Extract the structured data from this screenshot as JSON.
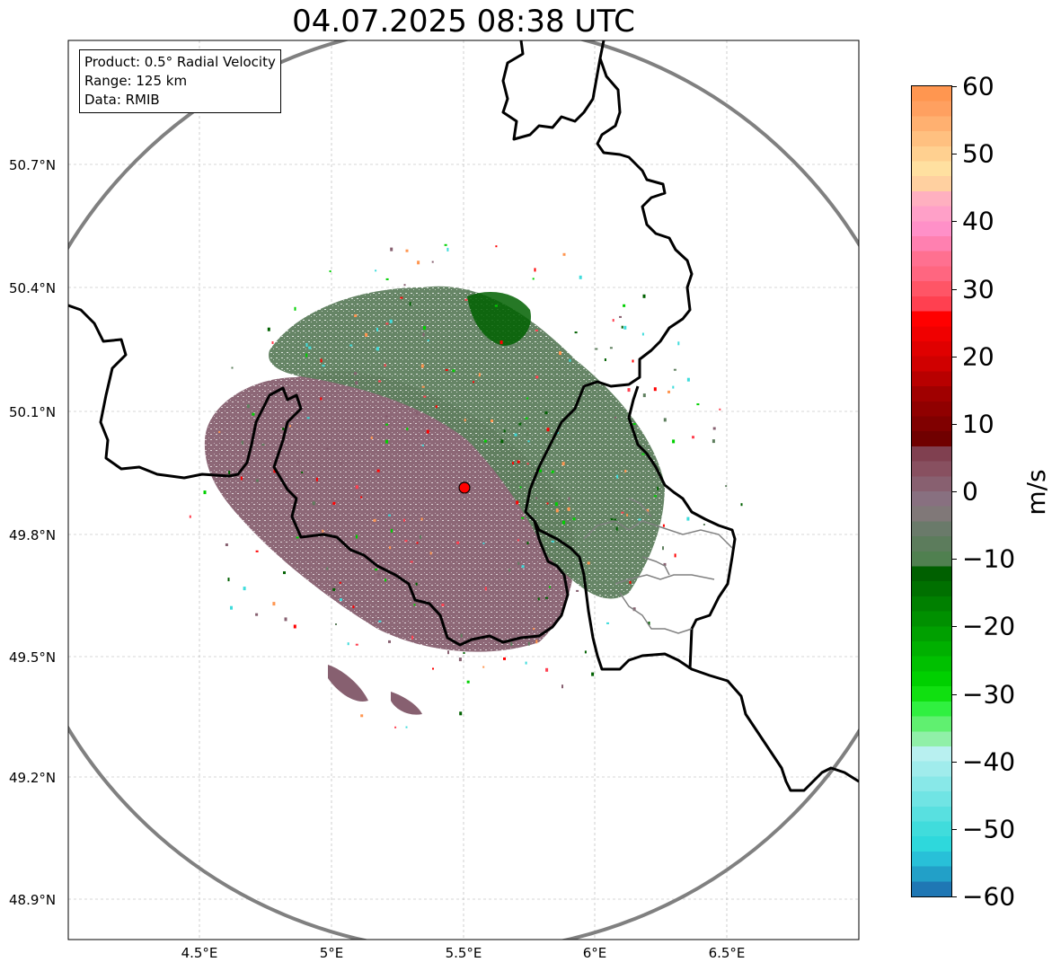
{
  "title": "04.07.2025 08:38 UTC",
  "info": {
    "product": "Product: 0.5° Radial Velocity",
    "range": "Range: 125 km",
    "data": "Data: RMIB"
  },
  "axes": {
    "lat_labels": [
      "50.7°N",
      "50.4°N",
      "50.1°N",
      "49.8°N",
      "49.5°N",
      "49.2°N",
      "48.9°N"
    ],
    "lon_labels": [
      "4.5°E",
      "5°E",
      "5.5°E",
      "6°E",
      "6.5°E"
    ],
    "lon_range": [
      4.0,
      7.0
    ],
    "lat_range": [
      48.8,
      51.0
    ],
    "gridlines": true
  },
  "radar": {
    "site_lon": 5.5,
    "site_lat": 49.915,
    "range_km": 125
  },
  "colorbar": {
    "unit": "m/s",
    "min": -60,
    "max": 60,
    "tick_labels": [
      "60",
      "50",
      "40",
      "30",
      "20",
      "10",
      "0",
      "−10",
      "−20",
      "−30",
      "−40",
      "−50",
      "−60"
    ],
    "colors_bottom_to_top": [
      "#1f77b4",
      "#22a0c8",
      "#28c0d8",
      "#2ed8dc",
      "#40dcdc",
      "#58e0e0",
      "#70e4e4",
      "#88e8e8",
      "#a0ecec",
      "#b8f0f0",
      "#90f0a8",
      "#60f070",
      "#30f040",
      "#10e010",
      "#00d000",
      "#00c000",
      "#00b000",
      "#00a000",
      "#009000",
      "#008000",
      "#007000",
      "#006000",
      "#508050",
      "#5c7c5c",
      "#6a7a6a",
      "#807878",
      "#887080",
      "#886070",
      "#885060",
      "#804050",
      "#700000",
      "#800000",
      "#900000",
      "#a00000",
      "#b80000",
      "#d00000",
      "#e00000",
      "#f00000",
      "#ff0000",
      "#ff4050",
      "#ff5566",
      "#ff6680",
      "#ff7090",
      "#ff80b0",
      "#ff90c8",
      "#ffa0c8",
      "#ffb0c0",
      "#ffd0a0",
      "#ffe0a0",
      "#ffd090",
      "#ffc080",
      "#ffb070",
      "#ffa060",
      "#ff9650"
    ]
  },
  "colors": {
    "inbound_green": "#5e7f5e",
    "outbound_mauve": "#876070",
    "range_ring": "#808080",
    "site_marker": "#ff0000"
  }
}
